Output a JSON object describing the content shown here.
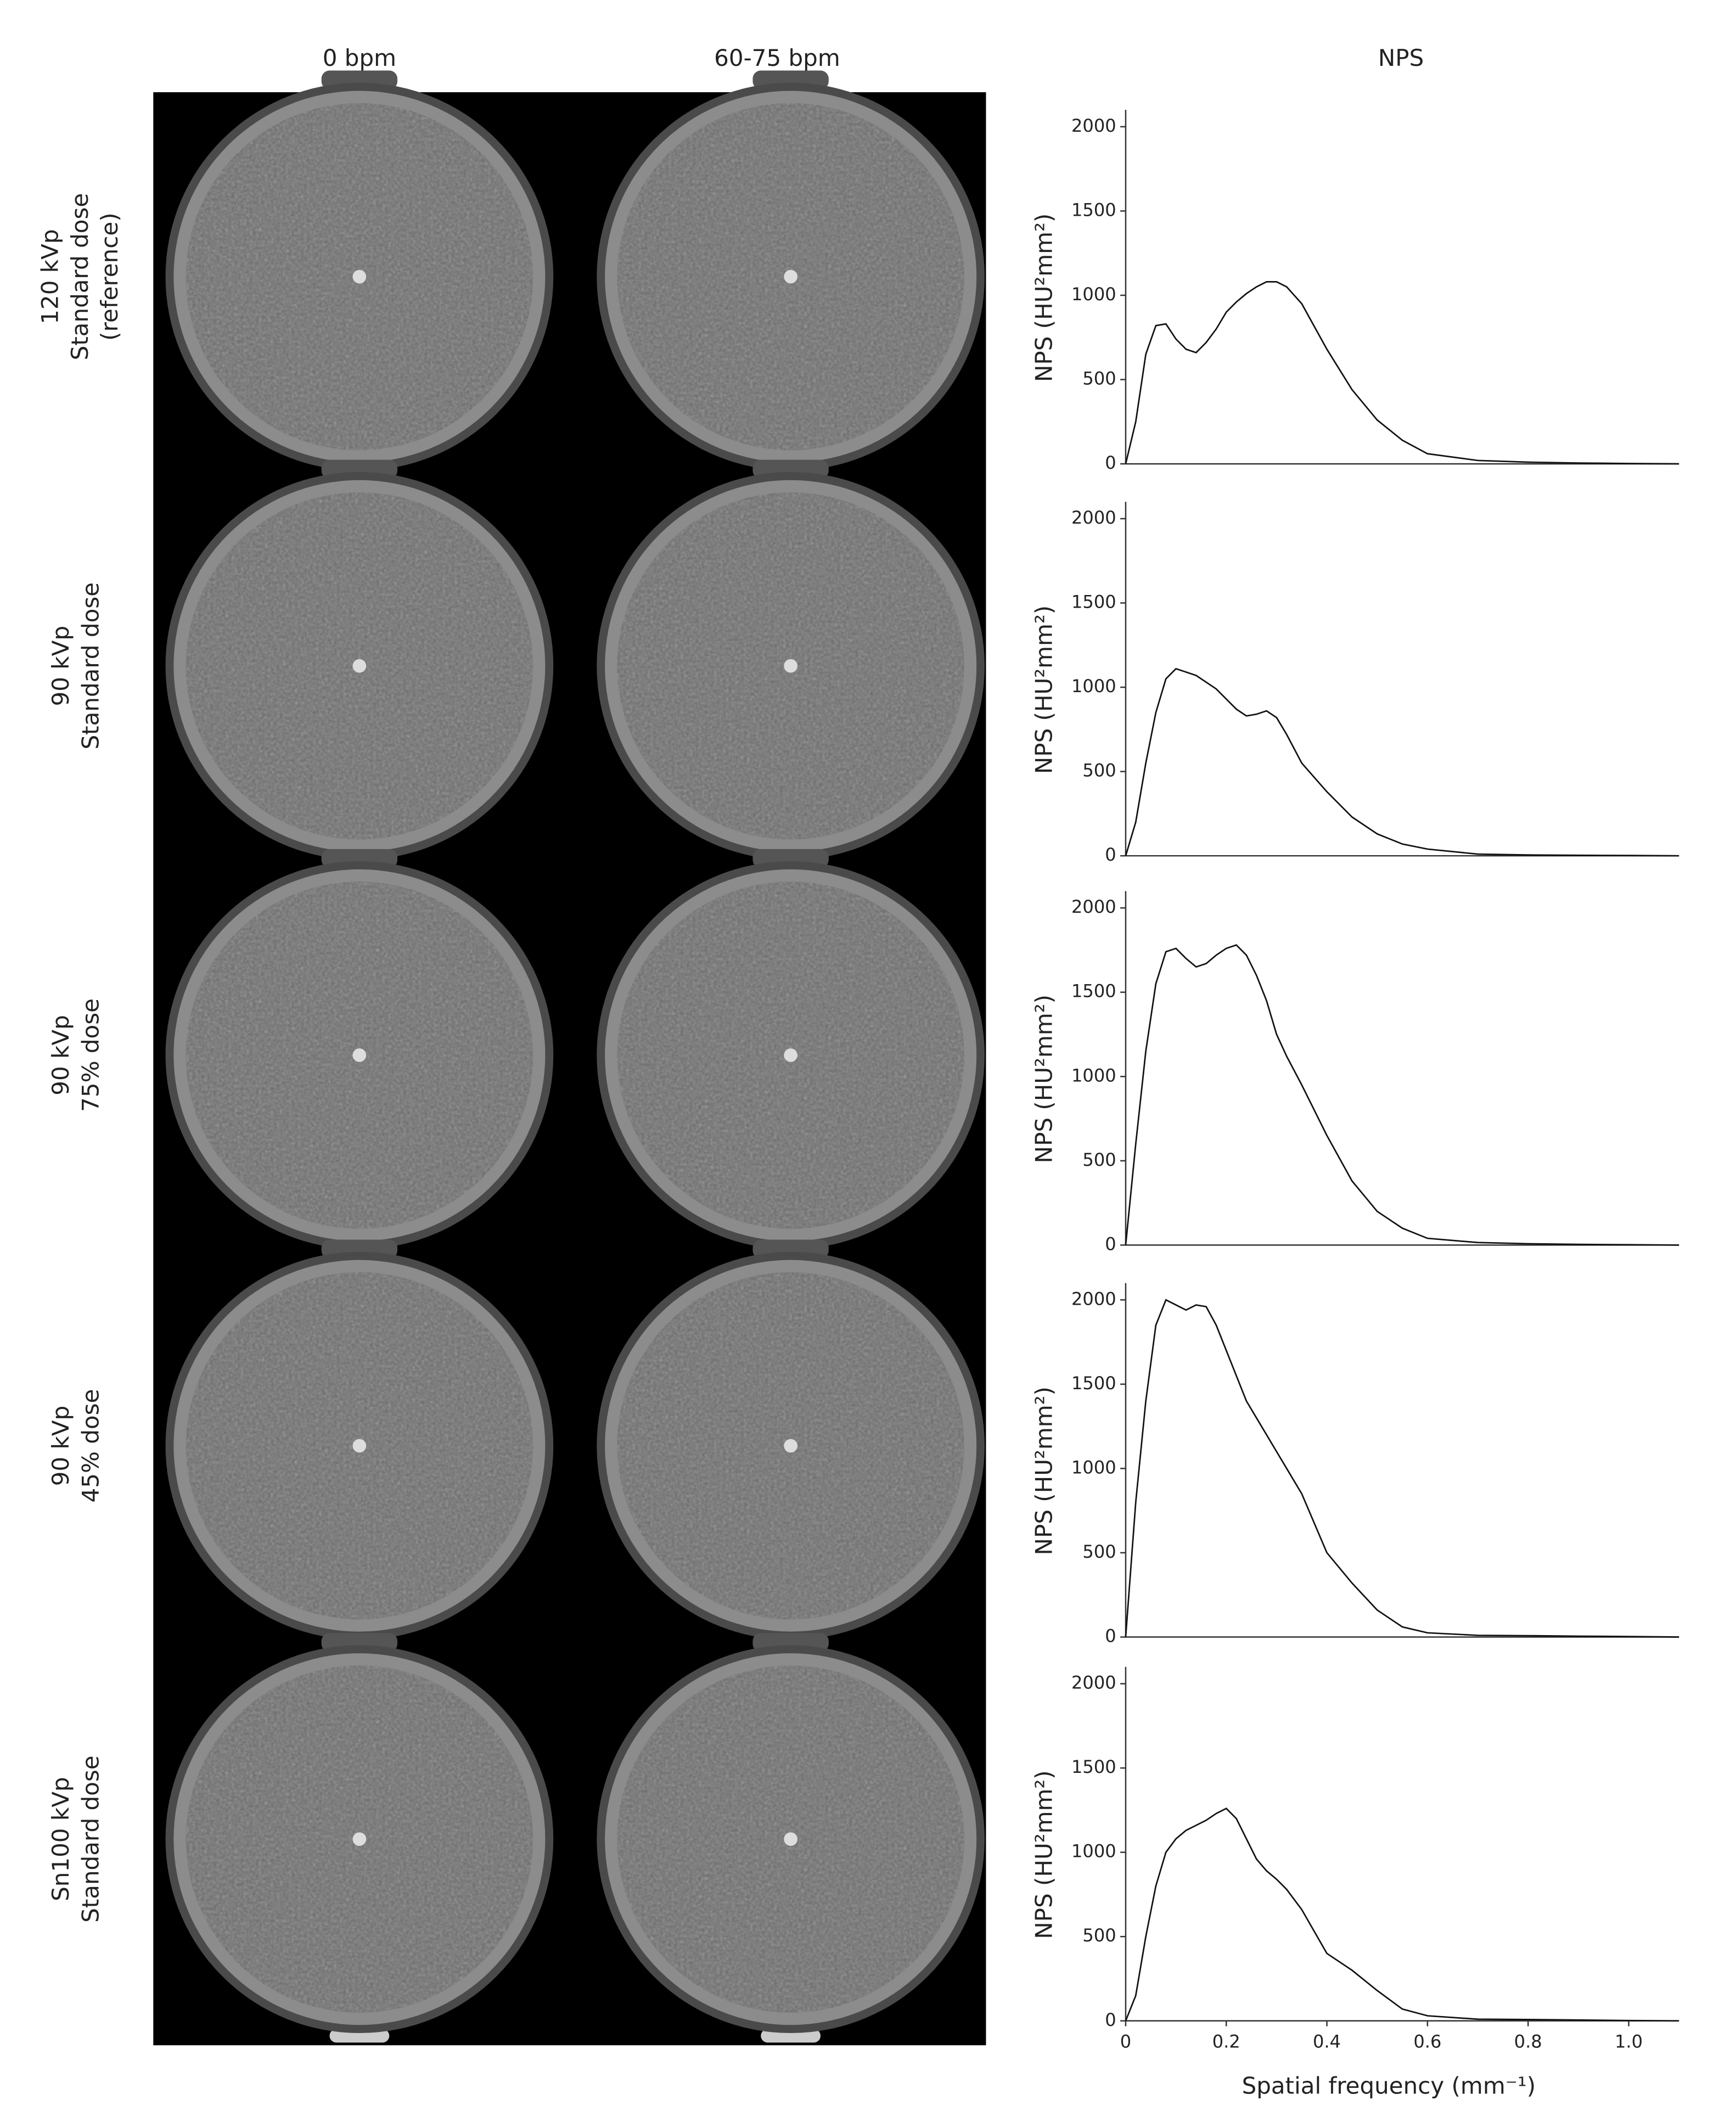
{
  "columns": [
    "0 bpm",
    "60-75 bpm",
    "NPS"
  ],
  "rows": [
    [
      "120 kVp",
      "Standard dose",
      "(reference)"
    ],
    [
      "90 kVp",
      "Standard dose"
    ],
    [
      "90 kVp",
      "75% dose"
    ],
    [
      "90 kVp",
      "45% dose"
    ],
    [
      "Sn100 kVp",
      "Standard dose"
    ]
  ],
  "chart_data": [
    {
      "type": "line",
      "y_label": "NPS (HU²mm²)",
      "color": "#111111",
      "x": [
        0,
        0.02,
        0.04,
        0.06,
        0.08,
        0.1,
        0.12,
        0.14,
        0.16,
        0.18,
        0.2,
        0.22,
        0.24,
        0.26,
        0.28,
        0.3,
        0.32,
        0.35,
        0.4,
        0.45,
        0.5,
        0.55,
        0.6,
        0.7,
        0.8,
        0.9,
        1.0,
        1.1
      ],
      "values": [
        0,
        250,
        650,
        820,
        830,
        740,
        680,
        660,
        720,
        800,
        900,
        960,
        1010,
        1050,
        1080,
        1080,
        1050,
        950,
        680,
        440,
        260,
        140,
        60,
        20,
        10,
        5,
        2,
        0
      ],
      "xlim": [
        0,
        1.1
      ],
      "ylim": [
        0,
        2100
      ],
      "yticks": [
        0,
        500,
        1000,
        1500,
        2000
      ]
    },
    {
      "type": "line",
      "y_label": "NPS (HU²mm²)",
      "color": "#111111",
      "x": [
        0,
        0.02,
        0.04,
        0.06,
        0.08,
        0.1,
        0.12,
        0.14,
        0.16,
        0.18,
        0.2,
        0.22,
        0.24,
        0.26,
        0.28,
        0.3,
        0.32,
        0.35,
        0.4,
        0.45,
        0.5,
        0.55,
        0.6,
        0.7,
        0.8,
        0.9,
        1.0,
        1.1
      ],
      "values": [
        0,
        200,
        550,
        850,
        1050,
        1110,
        1090,
        1070,
        1030,
        990,
        930,
        870,
        830,
        840,
        860,
        820,
        720,
        550,
        380,
        230,
        130,
        70,
        40,
        10,
        5,
        3,
        2,
        0
      ],
      "xlim": [
        0,
        1.1
      ],
      "ylim": [
        0,
        2100
      ],
      "yticks": [
        0,
        500,
        1000,
        1500,
        2000
      ]
    },
    {
      "type": "line",
      "y_label": "NPS (HU²mm²)",
      "color": "#111111",
      "x": [
        0,
        0.02,
        0.04,
        0.06,
        0.08,
        0.1,
        0.12,
        0.14,
        0.16,
        0.18,
        0.2,
        0.22,
        0.24,
        0.26,
        0.28,
        0.3,
        0.32,
        0.35,
        0.4,
        0.45,
        0.5,
        0.55,
        0.6,
        0.7,
        0.8,
        0.9,
        1.0,
        1.1
      ],
      "values": [
        0,
        600,
        1150,
        1550,
        1740,
        1760,
        1700,
        1650,
        1670,
        1720,
        1760,
        1780,
        1720,
        1600,
        1450,
        1250,
        1120,
        950,
        650,
        380,
        200,
        100,
        40,
        15,
        8,
        4,
        2,
        0
      ],
      "xlim": [
        0,
        1.1
      ],
      "ylim": [
        0,
        2100
      ],
      "yticks": [
        0,
        500,
        1000,
        1500,
        2000
      ]
    },
    {
      "type": "line",
      "y_label": "NPS (HU²mm²)",
      "color": "#111111",
      "x": [
        0,
        0.02,
        0.04,
        0.06,
        0.08,
        0.1,
        0.12,
        0.14,
        0.16,
        0.18,
        0.2,
        0.22,
        0.24,
        0.26,
        0.28,
        0.3,
        0.32,
        0.35,
        0.4,
        0.45,
        0.5,
        0.55,
        0.6,
        0.7,
        0.8,
        0.9,
        1.0,
        1.1
      ],
      "values": [
        0,
        800,
        1400,
        1850,
        2000,
        1970,
        1940,
        1970,
        1960,
        1850,
        1700,
        1550,
        1400,
        1300,
        1200,
        1100,
        1000,
        850,
        500,
        320,
        160,
        60,
        25,
        10,
        8,
        5,
        3,
        0
      ],
      "xlim": [
        0,
        1.1
      ],
      "ylim": [
        0,
        2100
      ],
      "yticks": [
        0,
        500,
        1000,
        1500,
        2000
      ]
    },
    {
      "type": "line",
      "y_label": "NPS (HU²mm²)",
      "x_label": "Spatial frequency (mm⁻¹)",
      "color": "#111111",
      "x": [
        0,
        0.02,
        0.04,
        0.06,
        0.08,
        0.1,
        0.12,
        0.14,
        0.16,
        0.18,
        0.2,
        0.22,
        0.24,
        0.26,
        0.28,
        0.3,
        0.32,
        0.35,
        0.4,
        0.45,
        0.5,
        0.55,
        0.6,
        0.7,
        0.8,
        0.9,
        1.0,
        1.1
      ],
      "values": [
        0,
        150,
        500,
        800,
        1000,
        1080,
        1130,
        1160,
        1190,
        1230,
        1260,
        1200,
        1080,
        960,
        890,
        840,
        780,
        660,
        400,
        300,
        180,
        70,
        30,
        10,
        8,
        5,
        2,
        0
      ],
      "xlim": [
        0,
        1.1
      ],
      "ylim": [
        0,
        2100
      ],
      "yticks": [
        0,
        500,
        1000,
        1500,
        2000
      ],
      "xticks": [
        0,
        0.2,
        0.4,
        0.6,
        0.8,
        {
          "value": 1,
          "label": "1.0"
        }
      ]
    }
  ]
}
